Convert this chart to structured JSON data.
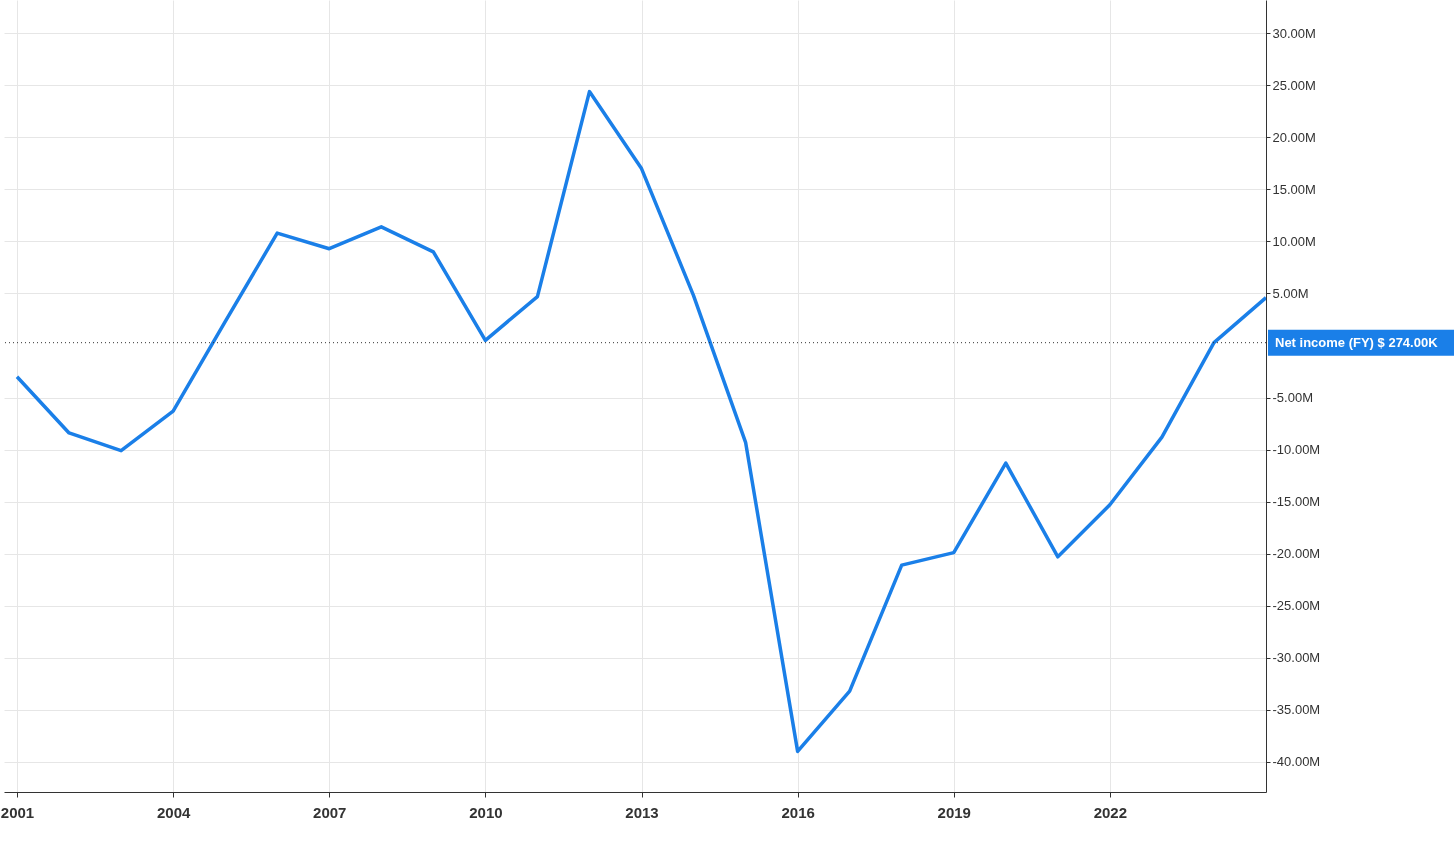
{
  "chart_data": {
    "type": "line",
    "x": [
      2001,
      2002,
      2003,
      2004,
      2005,
      2006,
      2007,
      2008,
      2009,
      2010,
      2011,
      2012,
      2013,
      2014,
      2015,
      2016,
      2017,
      2018,
      2019,
      2020,
      2021,
      2022,
      2023,
      2024,
      2025
    ],
    "series": [
      {
        "color": "#1a7fe8",
        "values": [
          -3.0,
          -8.4,
          -10.1,
          -6.3,
          2.3,
          10.8,
          9.3,
          11.4,
          9.0,
          0.5,
          4.7,
          24.4,
          17.0,
          4.8,
          -9.3,
          -39.0,
          -33.2,
          -21.1,
          -19.9,
          -11.3,
          -20.3,
          -15.3,
          -8.8,
          0.274,
          4.6
        ]
      }
    ],
    "xlim": [
      2000.75,
      2025
    ],
    "xticks": [
      2001,
      2004,
      2007,
      2010,
      2013,
      2016,
      2019,
      2022
    ],
    "ylim": [
      -42.9,
      33.2
    ],
    "yticks": [
      {
        "value": 30,
        "label": "30.00M"
      },
      {
        "value": 25,
        "label": "25.00M"
      },
      {
        "value": 20,
        "label": "20.00M"
      },
      {
        "value": 15,
        "label": "15.00M"
      },
      {
        "value": 10,
        "label": "10.00M"
      },
      {
        "value": 5,
        "label": "5.00M"
      },
      {
        "value": -5,
        "label": "-5.00M"
      },
      {
        "value": -10,
        "label": "-10.00M"
      },
      {
        "value": -15,
        "label": "-15.00M"
      },
      {
        "value": -20,
        "label": "-20.00M"
      },
      {
        "value": -25,
        "label": "-25.00M"
      },
      {
        "value": -30,
        "label": "-30.00M"
      },
      {
        "value": -35,
        "label": "-35.00M"
      },
      {
        "value": -40,
        "label": "-40.00M"
      }
    ],
    "ref_lines": [
      {
        "axis": "y",
        "value": 0.274,
        "label": "Net income (FY)   $ 274.00K",
        "color": "#333333",
        "line_style": "dotted"
      }
    ],
    "grid": true,
    "marker": "none",
    "line_style": "solid"
  }
}
